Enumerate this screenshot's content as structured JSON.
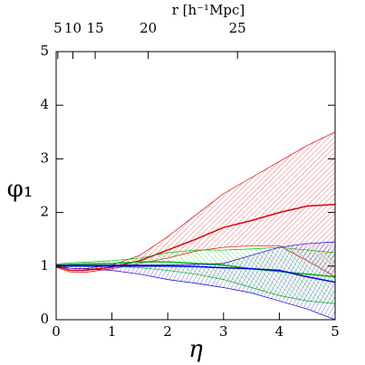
{
  "chart_data": {
    "type": "line",
    "x2label": "r [h⁻¹Mpc]",
    "xlabel": "η",
    "ylabel": "φ₁",
    "x": [
      0,
      0.25,
      0.5,
      1,
      1.5,
      2,
      2.5,
      3,
      3.5,
      4,
      4.5,
      5
    ],
    "series": [
      {
        "color": "#e00000",
        "values": [
          1.0,
          0.92,
          0.92,
          0.98,
          1.1,
          1.3,
          1.5,
          1.72,
          1.85,
          2.0,
          2.12,
          2.15
        ],
        "upper": [
          1.02,
          0.96,
          0.95,
          1.02,
          1.2,
          1.55,
          1.95,
          2.35,
          2.65,
          2.95,
          3.25,
          3.5
        ],
        "lower": [
          0.98,
          0.89,
          0.88,
          0.95,
          1.05,
          1.15,
          1.28,
          1.35,
          1.38,
          1.38,
          1.1,
          0.8
        ]
      },
      {
        "color": "#00c000",
        "values": [
          1.02,
          1.03,
          1.04,
          1.05,
          1.08,
          1.08,
          1.05,
          1.02,
          0.95,
          0.9,
          0.85,
          0.8
        ],
        "upper": [
          1.04,
          1.06,
          1.07,
          1.1,
          1.15,
          1.25,
          1.3,
          1.3,
          1.32,
          1.35,
          1.3,
          1.25
        ],
        "lower": [
          1.0,
          1.0,
          1.0,
          1.0,
          0.97,
          0.92,
          0.85,
          0.75,
          0.6,
          0.45,
          0.35,
          0.3
        ]
      },
      {
        "color": "#0000e0",
        "values": [
          1.0,
          1.0,
          1.0,
          1.0,
          1.0,
          1.0,
          0.99,
          0.97,
          0.95,
          0.92,
          0.8,
          0.7
        ],
        "upper": [
          1.02,
          1.02,
          1.02,
          1.02,
          1.02,
          1.02,
          1.03,
          1.05,
          1.2,
          1.35,
          1.42,
          1.45
        ],
        "lower": [
          0.98,
          0.96,
          0.95,
          0.92,
          0.85,
          0.75,
          0.68,
          0.6,
          0.5,
          0.35,
          0.2,
          0.0
        ]
      }
    ],
    "xlim": [
      0,
      5
    ],
    "ylim": [
      0,
      5
    ],
    "xticks": [
      0,
      1,
      2,
      3,
      4,
      5
    ],
    "yticks": [
      0,
      1,
      2,
      3,
      4,
      5
    ],
    "x2ticks": [
      {
        "value": 0.03,
        "label": "5"
      },
      {
        "value": 0.3,
        "label": "10"
      },
      {
        "value": 0.7,
        "label": "15"
      },
      {
        "value": 1.65,
        "label": "20"
      },
      {
        "value": 3.25,
        "label": "25"
      }
    ]
  }
}
